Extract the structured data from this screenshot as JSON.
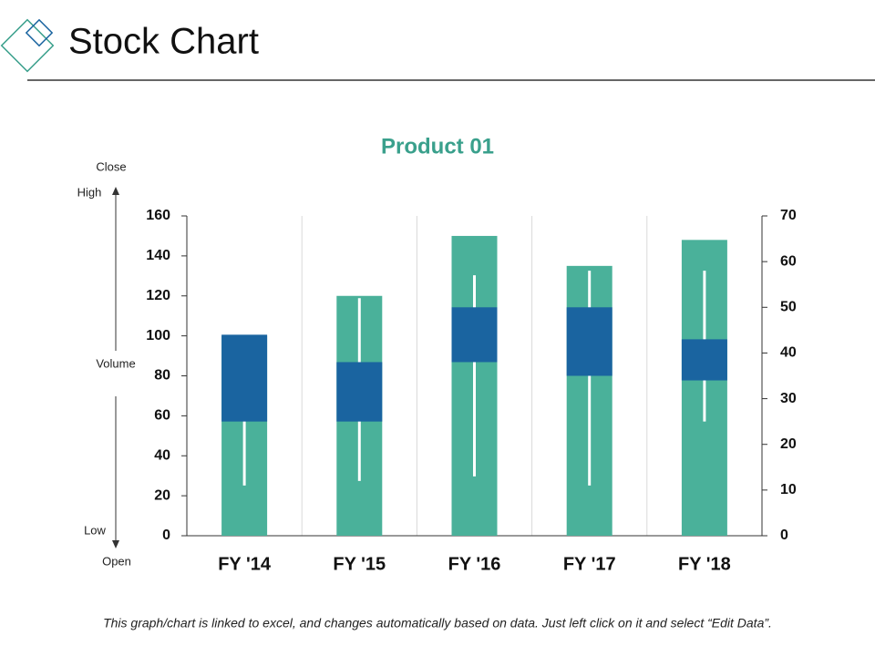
{
  "header": {
    "title": "Stock Chart"
  },
  "chart_data": {
    "type": "stock",
    "title": "Product 01",
    "categories": [
      "FY '14",
      "FY '15",
      "FY '16",
      "FY '17",
      "FY '18"
    ],
    "series": [
      {
        "name": "Volume",
        "color": "#4ab19a",
        "values": [
          100,
          120,
          150,
          135,
          148
        ]
      },
      {
        "name": "Open",
        "color": "#1a64a0",
        "axis": "y2",
        "values": [
          25,
          25,
          38,
          35,
          34
        ]
      },
      {
        "name": "High",
        "color": "#ffffff",
        "axis": "y2",
        "values": [
          44,
          52,
          57,
          58,
          58
        ]
      },
      {
        "name": "Low",
        "color": "#ffffff",
        "axis": "y2",
        "values": [
          11,
          12,
          13,
          11,
          25
        ]
      },
      {
        "name": "Close",
        "color": "#1a64a0",
        "axis": "y2",
        "values": [
          44,
          38,
          50,
          50,
          43
        ]
      }
    ],
    "ylim": [
      0,
      160
    ],
    "yticks": [
      0,
      20,
      40,
      60,
      80,
      100,
      120,
      140,
      160
    ],
    "y2lim": [
      0,
      70
    ],
    "y2ticks": [
      0,
      10,
      20,
      30,
      40,
      50,
      60,
      70
    ],
    "grid": true
  },
  "footer": {
    "note": "This graph/chart is linked to excel, and changes automatically based on data. Just left click on it and select “Edit Data”."
  }
}
